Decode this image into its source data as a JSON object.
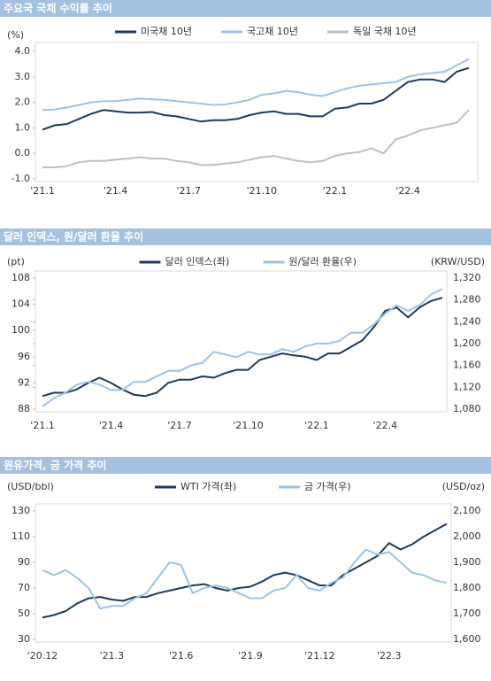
{
  "chart_data": [
    {
      "type": "line",
      "title": "주요국 국채 수익률 추이",
      "y_label": "(%)",
      "categories": [
        "'21.1",
        null,
        null,
        null,
        null,
        null,
        "'21.4",
        null,
        null,
        null,
        null,
        null,
        "'21.7",
        null,
        null,
        null,
        null,
        null,
        "'21.10",
        null,
        null,
        null,
        null,
        null,
        "'22.1",
        null,
        null,
        null,
        null,
        null,
        "'22.4",
        null,
        null,
        null,
        null,
        null
      ],
      "series": [
        {
          "name": "미국채 10년",
          "color": "#1f3b5c",
          "values": [
            0.93,
            1.1,
            1.15,
            1.35,
            1.55,
            1.7,
            1.65,
            1.6,
            1.6,
            1.62,
            1.5,
            1.45,
            1.35,
            1.25,
            1.3,
            1.3,
            1.35,
            1.5,
            1.6,
            1.65,
            1.55,
            1.55,
            1.45,
            1.45,
            1.75,
            1.8,
            1.95,
            1.95,
            2.1,
            2.45,
            2.8,
            2.9,
            2.9,
            2.8,
            3.2,
            3.35
          ]
        },
        {
          "name": "국고채 10년",
          "color": "#9dc3e6",
          "values": [
            1.7,
            1.72,
            1.8,
            1.9,
            2.0,
            2.05,
            2.05,
            2.1,
            2.15,
            2.12,
            2.1,
            2.05,
            2.0,
            1.95,
            1.9,
            1.92,
            2.0,
            2.1,
            2.3,
            2.35,
            2.45,
            2.4,
            2.3,
            2.25,
            2.4,
            2.55,
            2.65,
            2.7,
            2.75,
            2.8,
            3.0,
            3.1,
            3.15,
            3.2,
            3.45,
            3.7
          ]
        },
        {
          "name": "독일 국채 10년",
          "color": "#bfbfbf",
          "values": [
            -0.55,
            -0.55,
            -0.5,
            -0.35,
            -0.3,
            -0.3,
            -0.25,
            -0.2,
            -0.15,
            -0.2,
            -0.2,
            -0.3,
            -0.35,
            -0.45,
            -0.45,
            -0.4,
            -0.35,
            -0.25,
            -0.15,
            -0.1,
            -0.2,
            -0.3,
            -0.35,
            -0.3,
            -0.1,
            0.0,
            0.05,
            0.2,
            0.0,
            0.55,
            0.7,
            0.9,
            1.0,
            1.1,
            1.2,
            1.7
          ]
        }
      ],
      "ylim": [
        -1,
        4
      ],
      "yticks": [
        {
          "value": 4,
          "label": "4.0"
        },
        {
          "value": 3,
          "label": "3.0"
        },
        {
          "value": 2,
          "label": "2.0"
        },
        {
          "value": 1,
          "label": "1.0"
        },
        {
          "value": 0,
          "label": "0.0"
        },
        {
          "value": -1,
          "label": "-1.0"
        }
      ],
      "grid": false
    },
    {
      "type": "line",
      "title": "달러 인덱스, 원/달러 환율 추이",
      "y_label": "(pt)",
      "y2_label": "(KRW/USD)",
      "categories": [
        "'21.1",
        null,
        null,
        null,
        null,
        null,
        "'21.4",
        null,
        null,
        null,
        null,
        null,
        "'21.7",
        null,
        null,
        null,
        null,
        null,
        "'21.10",
        null,
        null,
        null,
        null,
        null,
        "'22.1",
        null,
        null,
        null,
        null,
        null,
        "'22.4",
        null,
        null,
        null,
        null,
        null
      ],
      "series": [
        {
          "name": "달러 인덱스(좌)",
          "color": "#1f3b5c",
          "values": [
            90,
            90.5,
            90.5,
            91,
            92,
            92.8,
            92,
            91,
            90.2,
            90,
            90.5,
            92,
            92.5,
            92.5,
            93,
            92.8,
            93.5,
            94,
            94,
            95.5,
            96,
            96.5,
            96.2,
            96,
            95.5,
            96.5,
            96.5,
            97.5,
            98.5,
            100.5,
            103,
            103.5,
            102,
            103.5,
            104.5,
            105
          ]
        },
        {
          "name": "원/달러 환율(우)",
          "color": "#9dc3e6",
          "axis": "y2",
          "values": [
            1085,
            1100,
            1110,
            1125,
            1130,
            1125,
            1115,
            1115,
            1130,
            1130,
            1140,
            1150,
            1150,
            1160,
            1165,
            1185,
            1180,
            1175,
            1185,
            1180,
            1180,
            1190,
            1185,
            1195,
            1200,
            1200,
            1205,
            1220,
            1220,
            1235,
            1255,
            1270,
            1260,
            1270,
            1290,
            1300
          ]
        }
      ],
      "ylim": [
        88,
        108
      ],
      "yticks": [
        108,
        104,
        100,
        96,
        92,
        88
      ],
      "y2lim": [
        1080,
        1320
      ],
      "y2ticks": [
        {
          "value": 1320,
          "label": "1,320"
        },
        {
          "value": 1280,
          "label": "1,280"
        },
        {
          "value": 1240,
          "label": "1,240"
        },
        {
          "value": 1200,
          "label": "1,200"
        },
        {
          "value": 1160,
          "label": "1,160"
        },
        {
          "value": 1120,
          "label": "1,120"
        },
        {
          "value": 1080,
          "label": "1,080"
        }
      ],
      "grid": false
    },
    {
      "type": "line",
      "title": "원유가격, 금 가격 추이",
      "y_label": "(USD/bbl)",
      "y2_label": "(USD/oz)",
      "categories": [
        "'20.12",
        null,
        null,
        null,
        null,
        null,
        "'21.3",
        null,
        null,
        null,
        null,
        null,
        "'21.6",
        null,
        null,
        null,
        null,
        null,
        "'21.9",
        null,
        null,
        null,
        null,
        null,
        "'21.12",
        null,
        null,
        null,
        null,
        null,
        "'22.3",
        null,
        null,
        null,
        null,
        null
      ],
      "series": [
        {
          "name": "WTI 가격(좌)",
          "color": "#1f3b5c",
          "values": [
            47,
            49,
            52,
            58,
            62,
            63,
            61,
            60,
            63,
            63,
            66,
            68,
            70,
            72,
            73,
            70,
            68,
            70,
            71,
            75,
            80,
            82,
            80,
            76,
            72,
            72,
            80,
            85,
            90,
            95,
            105,
            100,
            104,
            110,
            115,
            120
          ]
        },
        {
          "name": "금 가격(우)",
          "color": "#9dc3e6",
          "axis": "y2",
          "values": [
            1870,
            1850,
            1870,
            1840,
            1800,
            1720,
            1730,
            1730,
            1760,
            1780,
            1840,
            1900,
            1890,
            1780,
            1800,
            1810,
            1800,
            1780,
            1760,
            1760,
            1790,
            1800,
            1850,
            1800,
            1790,
            1820,
            1840,
            1900,
            1950,
            1930,
            1940,
            1900,
            1860,
            1850,
            1830,
            1820
          ]
        }
      ],
      "ylim": [
        30,
        130
      ],
      "yticks": [
        130,
        110,
        90,
        70,
        50,
        30
      ],
      "y2lim": [
        1600,
        2100
      ],
      "y2ticks": [
        {
          "value": 2100,
          "label": "2,100"
        },
        {
          "value": 2000,
          "label": "2,000"
        },
        {
          "value": 1900,
          "label": "1,900"
        },
        {
          "value": 1800,
          "label": "1,800"
        },
        {
          "value": 1700,
          "label": "1,700"
        },
        {
          "value": 1600,
          "label": "1,600"
        }
      ],
      "grid": false
    }
  ]
}
